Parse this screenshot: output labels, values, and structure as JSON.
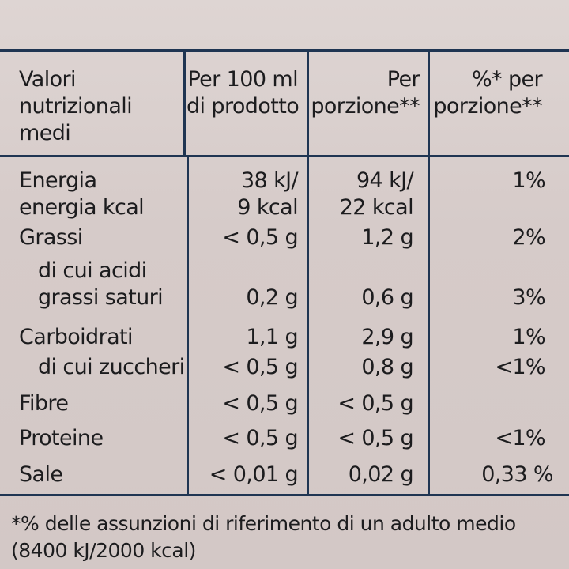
{
  "table": {
    "headers": {
      "col1": "Valori\nnutrizionali\nmedi",
      "col2": "Per 100 ml\ndi prodotto",
      "col3": "Per\nporzione**",
      "col4": "%* per\nporzione**"
    },
    "rows": [
      {
        "name": "Energia\nenergia kcal",
        "per100": "38 kJ/\n9 kcal",
        "portion": "94 kJ/\n22 kcal",
        "pct": "1%"
      },
      {
        "name": "Grassi",
        "per100": "< 0,5 g",
        "portion": "1,2 g",
        "pct": "2%"
      },
      {
        "name": "   di cui acidi\n   grassi saturi",
        "per100": "\n0,2 g",
        "portion": "\n0,6 g",
        "pct": "\n3%"
      },
      {
        "name": "Carboidrati",
        "per100": "1,1 g",
        "portion": "2,9 g",
        "pct": "1%"
      },
      {
        "name": "   di cui zuccheri",
        "per100": "< 0,5 g",
        "portion": "0,8 g",
        "pct": "<1%"
      },
      {
        "name": "Fibre",
        "per100": "< 0,5 g",
        "portion": "< 0,5 g",
        "pct": ""
      },
      {
        "name": "Proteine",
        "per100": "< 0,5 g",
        "portion": "< 0,5 g",
        "pct": "<1%"
      },
      {
        "name": "Sale",
        "per100": "< 0,01 g",
        "portion": "0,02 g",
        "pct": "0,33 %"
      }
    ]
  },
  "footnote": "*% delle assunzioni di riferimento di un adulto medio\n(8400 kJ/2000 kcal)",
  "colors": {
    "ink": "#1c1c1e",
    "rule": "#1f3552",
    "paper": "#d9cfcd"
  }
}
